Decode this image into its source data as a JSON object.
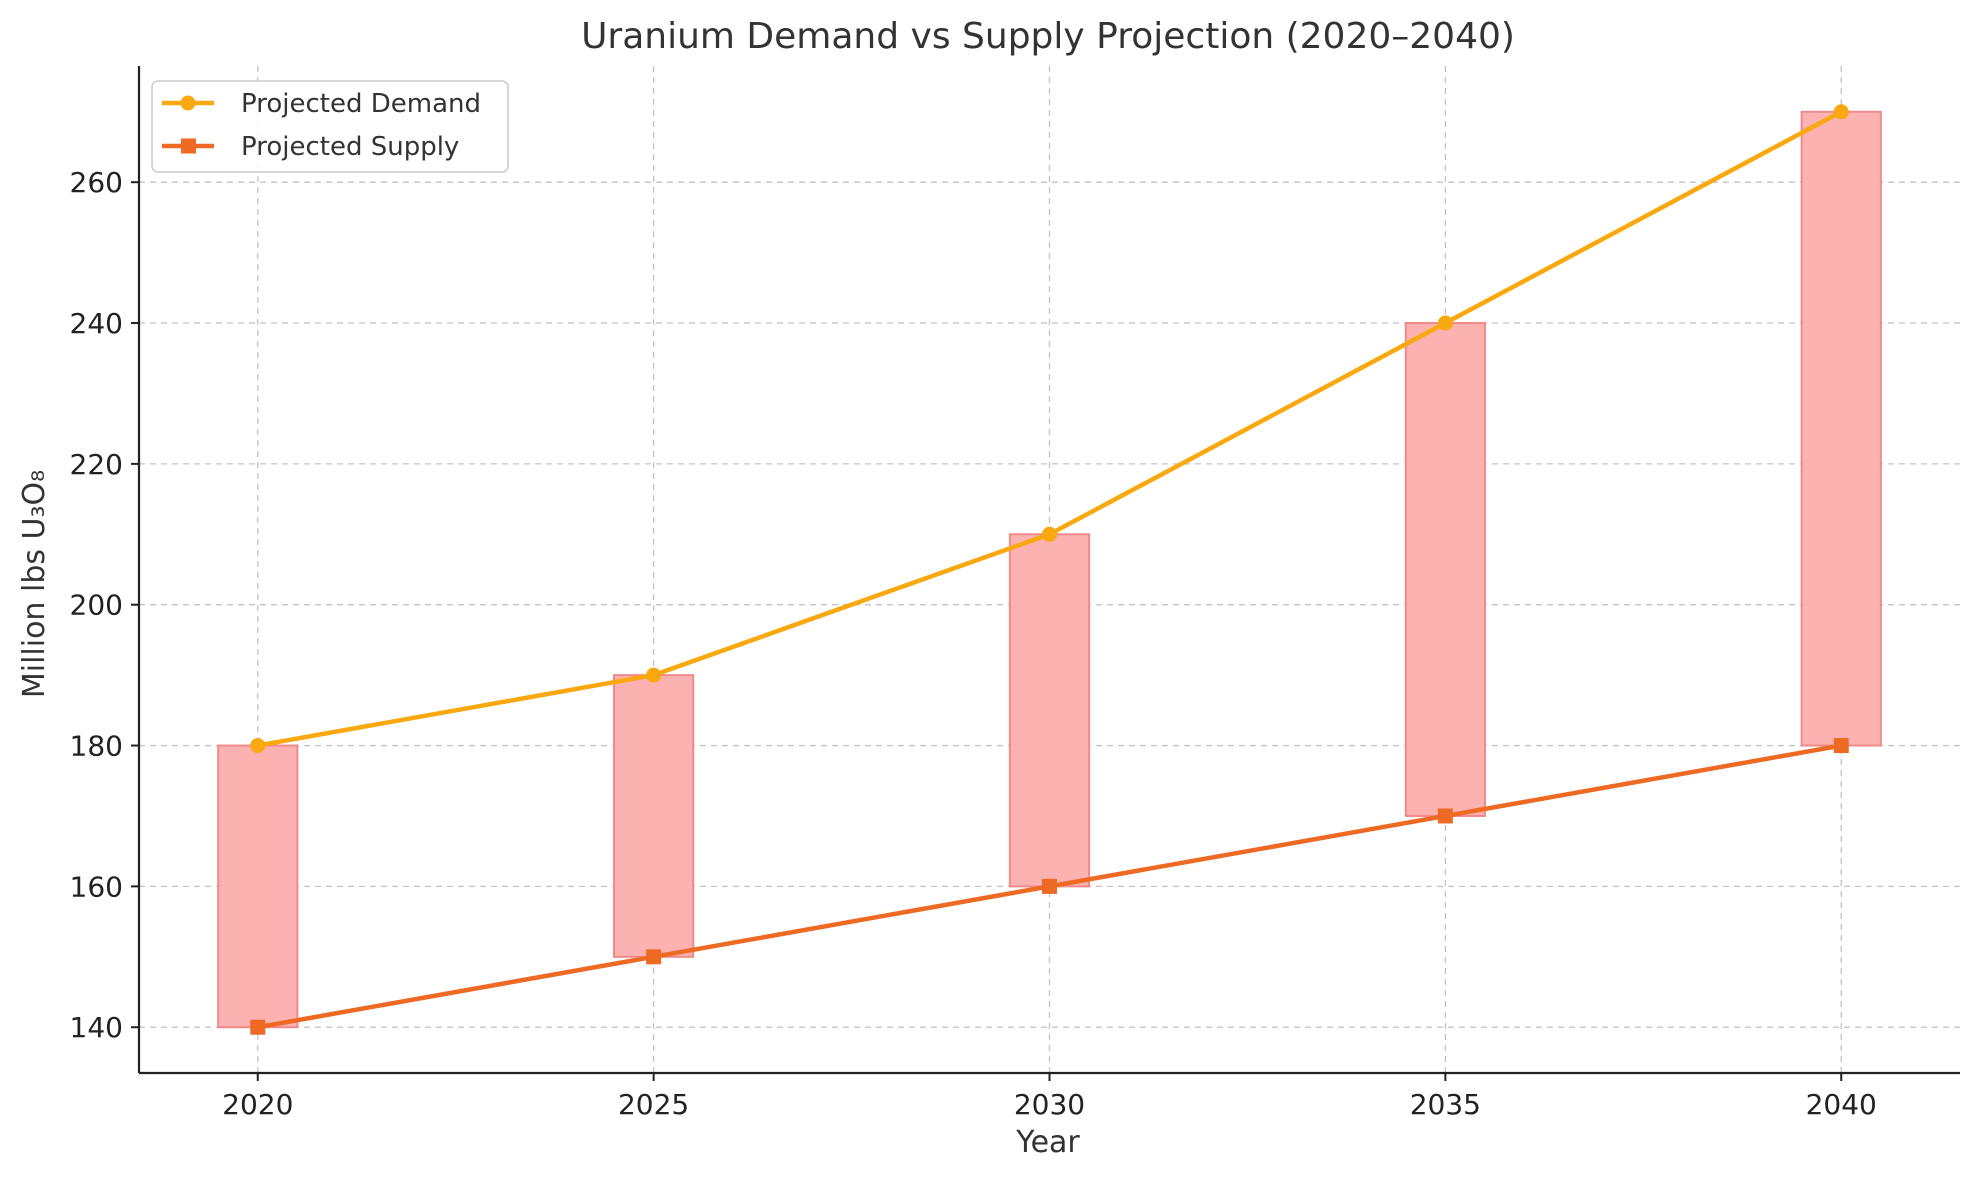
{
  "chart_data": {
    "type": "line",
    "title": "Uranium Demand vs Supply Projection (2020–2040)",
    "xlabel": "Year",
    "ylabel": "Million lbs U₃O₈",
    "x": [
      2020,
      2025,
      2030,
      2035,
      2040
    ],
    "x_tick_labels": [
      "2020",
      "2025",
      "2030",
      "2035",
      "2040"
    ],
    "xlim": [
      2018.5,
      2041.5
    ],
    "ylim": [
      133.5,
      276.5
    ],
    "y_ticks": [
      140,
      160,
      180,
      200,
      220,
      240,
      260
    ],
    "y_tick_labels": [
      "140",
      "160",
      "180",
      "200",
      "220",
      "240",
      "260"
    ],
    "grid": true,
    "legend_position": "top-left",
    "series": [
      {
        "name": "Projected Demand",
        "values": [
          180,
          190,
          210,
          240,
          270
        ],
        "color": "#f9a80f",
        "marker": "circle"
      },
      {
        "name": "Projected Supply",
        "values": [
          140,
          150,
          160,
          170,
          180
        ],
        "color": "#ee6a24",
        "marker": "square"
      }
    ],
    "gap_bars": {
      "fill": "#fdb2b2",
      "edge": "#f08a8a",
      "bars": [
        {
          "x": 2020,
          "low": 140,
          "high": 180
        },
        {
          "x": 2025,
          "low": 150,
          "high": 190
        },
        {
          "x": 2030,
          "low": 160,
          "high": 210
        },
        {
          "x": 2035,
          "low": 170,
          "high": 240
        },
        {
          "x": 2040,
          "low": 180,
          "high": 270
        }
      ]
    }
  }
}
